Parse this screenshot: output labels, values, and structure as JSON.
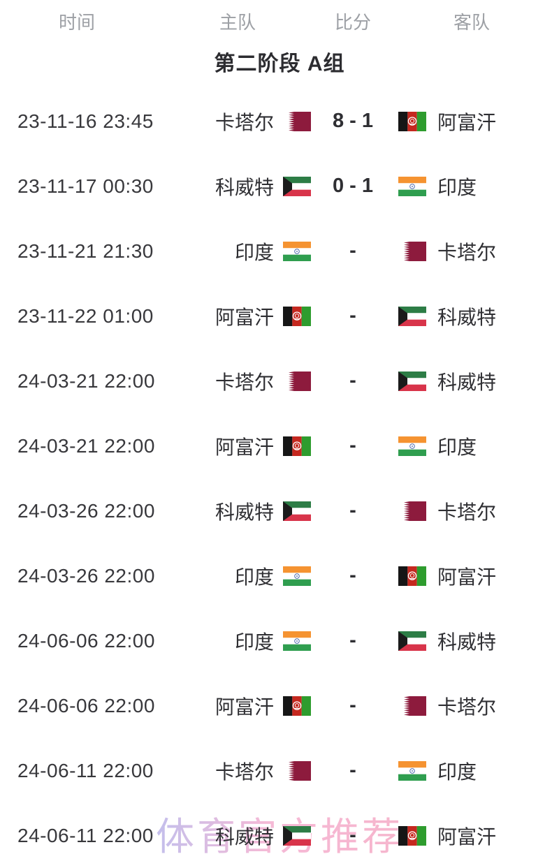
{
  "header": {
    "time": "时间",
    "home": "主队",
    "score": "比分",
    "away": "客队"
  },
  "group_title": "第二阶段 A组",
  "watermark": "体育官方推荐",
  "colors": {
    "header_text": "#9da0a5",
    "body_text": "#2f2f33",
    "watermark_gradient": [
      "#b5b0e8",
      "#f3a9cd",
      "#f5a3c0"
    ],
    "flags": {
      "qatar": {
        "maroon": "#8d1b3d",
        "white": "#ffffff"
      },
      "kuwait": {
        "green": "#2d7d46",
        "white": "#ffffff",
        "red": "#d8344a",
        "black": "#1b1b1b"
      },
      "afghanistan": {
        "black": "#161616",
        "red": "#c5281f",
        "green": "#2e9c2e",
        "emblem": "#ffffff"
      },
      "india": {
        "saffron": "#f59331",
        "white": "#ffffff",
        "green": "#2f9e4f",
        "navy": "#3b5aa5"
      }
    }
  },
  "matches": [
    {
      "time": "23-11-16 23:45",
      "home": {
        "name": "卡塔尔",
        "flag": "qatar-flag"
      },
      "score": "8 - 1",
      "away": {
        "name": "阿富汗",
        "flag": "afghanistan-flag"
      }
    },
    {
      "time": "23-11-17 00:30",
      "home": {
        "name": "科威特",
        "flag": "kuwait-flag"
      },
      "score": "0 - 1",
      "away": {
        "name": "印度",
        "flag": "india-flag"
      }
    },
    {
      "time": "23-11-21 21:30",
      "home": {
        "name": "印度",
        "flag": "india-flag"
      },
      "score": "-",
      "away": {
        "name": "卡塔尔",
        "flag": "qatar-flag"
      }
    },
    {
      "time": "23-11-22 01:00",
      "home": {
        "name": "阿富汗",
        "flag": "afghanistan-flag"
      },
      "score": "-",
      "away": {
        "name": "科威特",
        "flag": "kuwait-flag"
      }
    },
    {
      "time": "24-03-21 22:00",
      "home": {
        "name": "卡塔尔",
        "flag": "qatar-flag"
      },
      "score": "-",
      "away": {
        "name": "科威特",
        "flag": "kuwait-flag"
      }
    },
    {
      "time": "24-03-21 22:00",
      "home": {
        "name": "阿富汗",
        "flag": "afghanistan-flag"
      },
      "score": "-",
      "away": {
        "name": "印度",
        "flag": "india-flag"
      }
    },
    {
      "time": "24-03-26 22:00",
      "home": {
        "name": "科威特",
        "flag": "kuwait-flag"
      },
      "score": "-",
      "away": {
        "name": "卡塔尔",
        "flag": "qatar-flag"
      }
    },
    {
      "time": "24-03-26 22:00",
      "home": {
        "name": "印度",
        "flag": "india-flag"
      },
      "score": "-",
      "away": {
        "name": "阿富汗",
        "flag": "afghanistan-flag"
      }
    },
    {
      "time": "24-06-06 22:00",
      "home": {
        "name": "印度",
        "flag": "india-flag"
      },
      "score": "-",
      "away": {
        "name": "科威特",
        "flag": "kuwait-flag"
      }
    },
    {
      "time": "24-06-06 22:00",
      "home": {
        "name": "阿富汗",
        "flag": "afghanistan-flag"
      },
      "score": "-",
      "away": {
        "name": "卡塔尔",
        "flag": "qatar-flag"
      }
    },
    {
      "time": "24-06-11 22:00",
      "home": {
        "name": "卡塔尔",
        "flag": "qatar-flag"
      },
      "score": "-",
      "away": {
        "name": "印度",
        "flag": "india-flag"
      }
    },
    {
      "time": "24-06-11 22:00",
      "home": {
        "name": "科威特",
        "flag": "kuwait-flag"
      },
      "score": "-",
      "away": {
        "name": "阿富汗",
        "flag": "afghanistan-flag"
      }
    }
  ]
}
